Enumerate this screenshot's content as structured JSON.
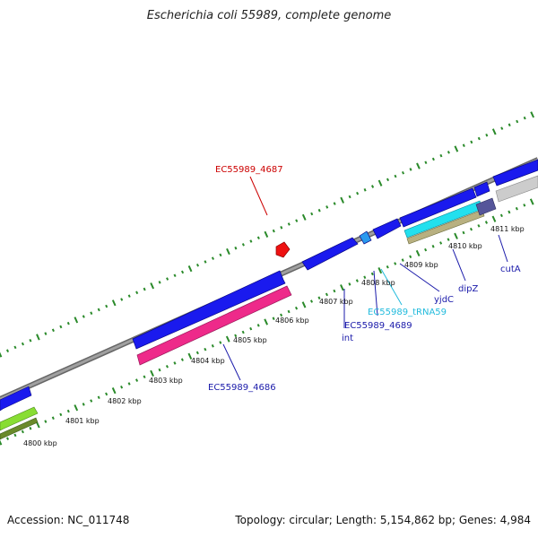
{
  "title": "Escherichia coli 55989, complete genome",
  "footer": {
    "accession": "Accession: NC_011748",
    "summary": "Topology: circular; Length: 5,154,862 bp; Genes: 4,984"
  },
  "kbp_labels": [
    "4800 kbp",
    "4801 kbp",
    "4802 kbp",
    "4803 kbp",
    "4804 kbp",
    "4805 kbp",
    "4806 kbp",
    "4807 kbp",
    "4808 kbp",
    "4809 kbp",
    "4810 kbp",
    "4811 kbp"
  ],
  "gene_labels": [
    {
      "text": "EC55989_4687",
      "color": "#cc0000"
    },
    {
      "text": "EC55989_4686",
      "color": "#1a1aaa"
    },
    {
      "text": "int",
      "color": "#1a1aaa"
    },
    {
      "text": "EC55989_4689",
      "color": "#1a1aaa"
    },
    {
      "text": "EC55989_tRNA59",
      "color": "#22bbdd"
    },
    {
      "text": "yjdC",
      "color": "#1a1aaa"
    },
    {
      "text": "dipZ",
      "color": "#1a1aaa"
    },
    {
      "text": "cutA",
      "color": "#1a1aaa"
    }
  ],
  "colors": {
    "gene_blue": "#1a1aee",
    "rna_pink": "#ee2a8a",
    "backbone_gray": "#888888",
    "tick_green": "#2a8a2a",
    "gene_red": "#ee1111",
    "gene_cyan": "#22e0ee",
    "gene_khaki": "#b8b080",
    "gene_light_gray": "#cccccc",
    "gene_lime": "#88dd33",
    "gene_olive": "#6a8a2a",
    "gene_slate": "#55559a"
  }
}
